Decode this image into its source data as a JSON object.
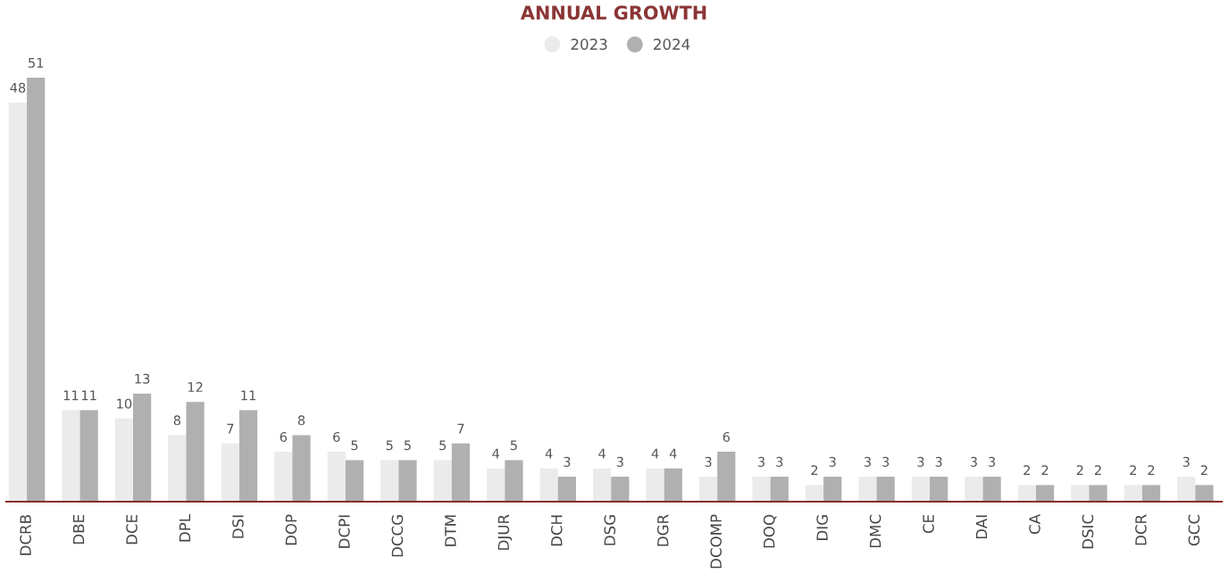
{
  "chart_data": {
    "type": "bar",
    "title": "ANNUAL GROWTH",
    "categories": [
      "DCRB",
      "DBE",
      "DCE",
      "DPL",
      "DSI",
      "DOP",
      "DCPI",
      "DCCG",
      "DTM",
      "DJUR",
      "DCH",
      "DSG",
      "DGR",
      "DCOMP",
      "DOQ",
      "DIG",
      "DMC",
      "CE",
      "DAI",
      "CA",
      "DSIC",
      "DCR",
      "GCC"
    ],
    "series": [
      {
        "name": "2023",
        "color": "#ebebeb",
        "values": [
          48,
          11,
          10,
          8,
          7,
          6,
          6,
          5,
          5,
          4,
          4,
          4,
          4,
          3,
          3,
          2,
          3,
          3,
          3,
          2,
          2,
          2,
          3
        ]
      },
      {
        "name": "2024",
        "color": "#b0b0b0",
        "values": [
          51,
          11,
          13,
          12,
          11,
          8,
          5,
          5,
          7,
          5,
          3,
          3,
          4,
          6,
          3,
          3,
          3,
          3,
          3,
          2,
          2,
          2,
          2
        ]
      }
    ],
    "data_labels": true,
    "legend": "top",
    "grid": false
  }
}
